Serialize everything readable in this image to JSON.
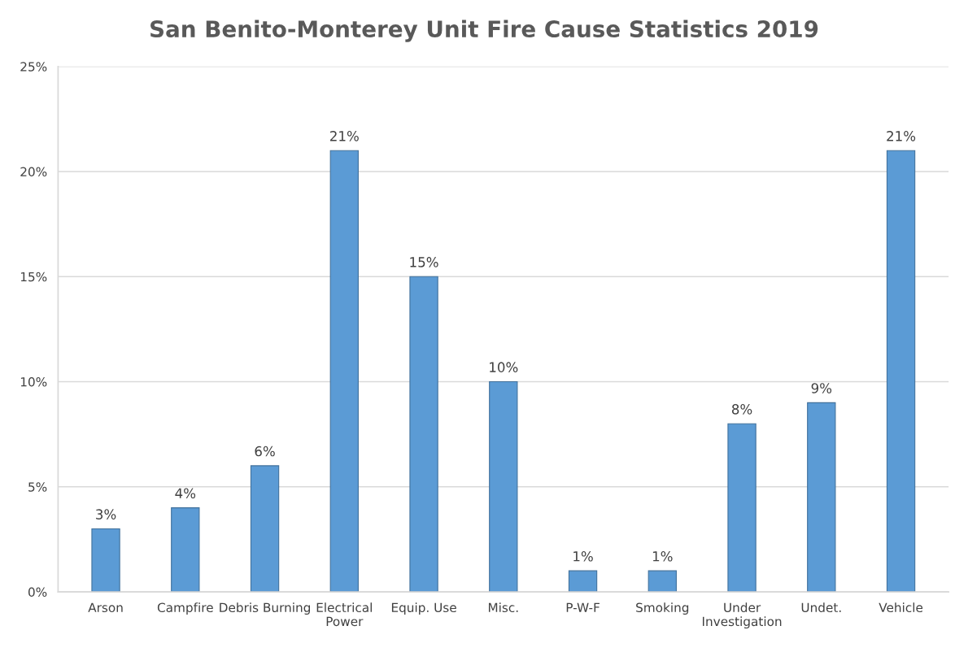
{
  "chart_data": {
    "type": "bar",
    "title": "San Benito-Monterey Unit Fire Cause Statistics 2019",
    "categories": [
      "Arson",
      "Campfire",
      "Debris Burning",
      "Electrical Power",
      "Equip. Use",
      "Misc.",
      "P-W-F",
      "Smoking",
      "Under Investigation",
      "Undet.",
      "Vehicle"
    ],
    "values": [
      3,
      4,
      6,
      21,
      15,
      10,
      1,
      1,
      8,
      9,
      21
    ],
    "value_labels": [
      "3%",
      "4%",
      "6%",
      "21%",
      "15%",
      "10%",
      "1%",
      "1%",
      "8%",
      "9%",
      "21%"
    ],
    "color": "#5b9bd5",
    "ylim": [
      0,
      25
    ],
    "yticks": [
      {
        "value": 0,
        "label": "0%"
      },
      {
        "value": 5,
        "label": "5%"
      },
      {
        "value": 10,
        "label": "10%"
      },
      {
        "value": 15,
        "label": "15%"
      },
      {
        "value": 20,
        "label": "20%"
      },
      {
        "value": 25,
        "label": "25%"
      }
    ],
    "grid": "y",
    "legend": false
  }
}
